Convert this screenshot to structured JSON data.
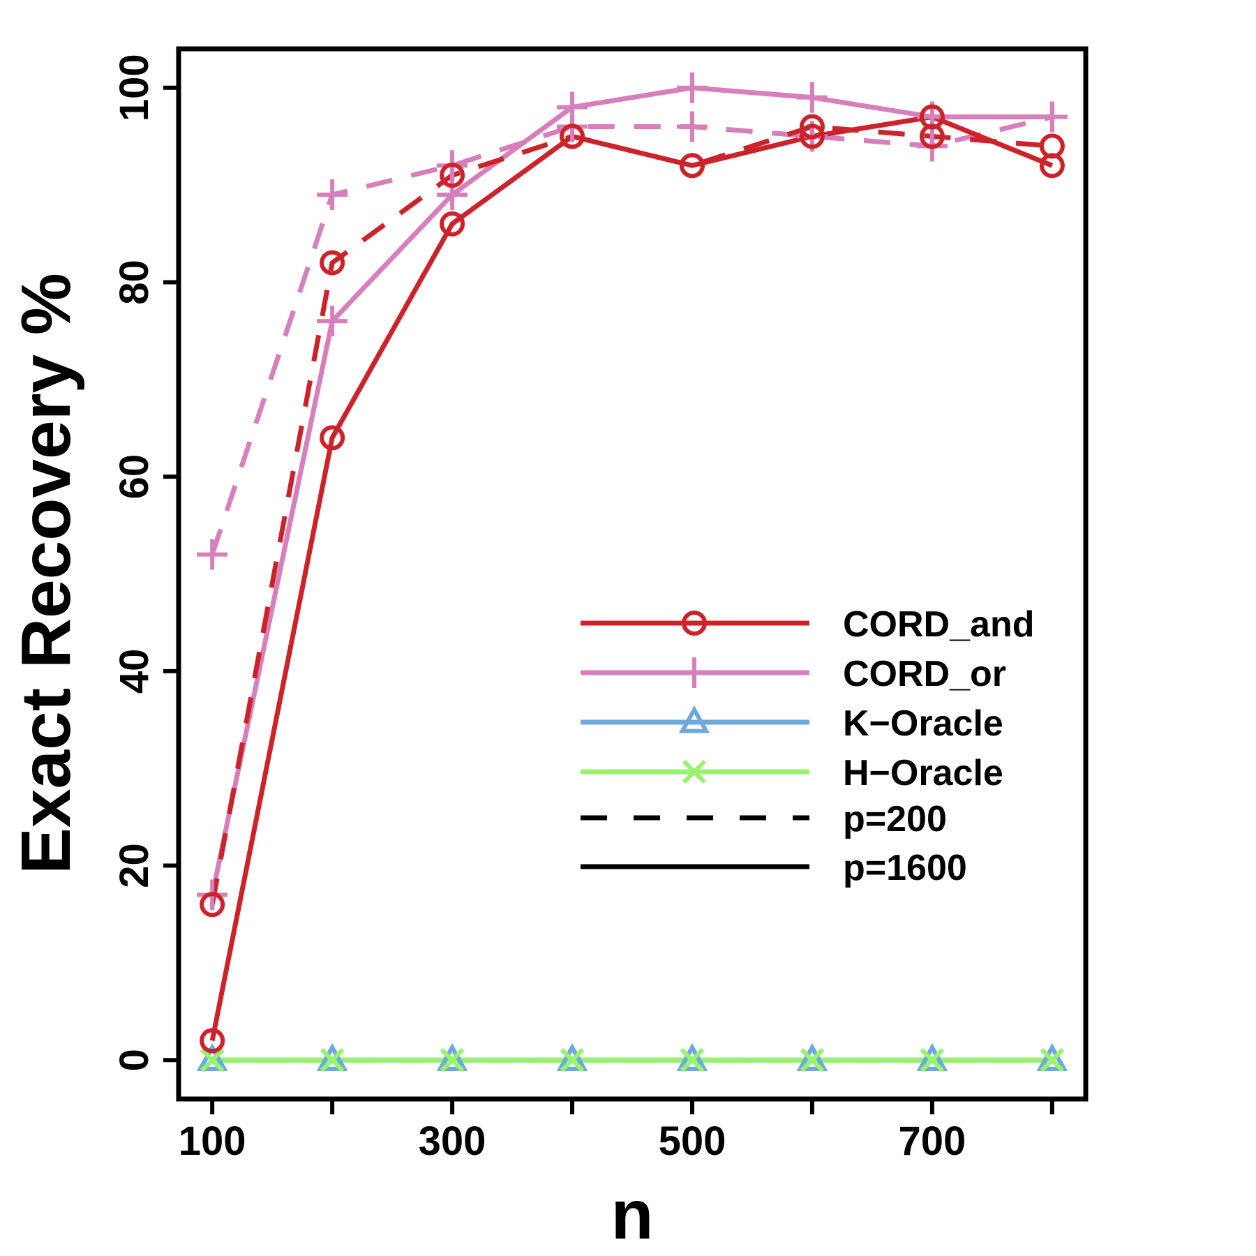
{
  "chart_data": {
    "type": "line",
    "title": "",
    "xlabel": "n",
    "ylabel": "Exact Recovery %",
    "x": [
      100,
      200,
      300,
      400,
      500,
      600,
      700,
      800
    ],
    "x_ticks": [
      100,
      300,
      500,
      700
    ],
    "y_ticks": [
      0,
      20,
      40,
      60,
      80,
      100
    ],
    "xlim": [
      72,
      828
    ],
    "ylim": [
      -4,
      104
    ],
    "grid": false,
    "legend_position": "center-right",
    "colors": {
      "CORD_and": "#cc2229",
      "CORD_or": "#d77fbb",
      "K-Oracle": "#6fa8dc",
      "H-Oracle": "#99f26e",
      "legend_line": "#000000"
    },
    "series": [
      {
        "method": "CORD_and",
        "p": "p=200",
        "dash": "dashed",
        "values": [
          16,
          82,
          91,
          95,
          92,
          96,
          95,
          94
        ]
      },
      {
        "method": "CORD_and",
        "p": "p=1600",
        "dash": "solid",
        "values": [
          2,
          64,
          86,
          95,
          92,
          95,
          97,
          92
        ]
      },
      {
        "method": "CORD_or",
        "p": "p=200",
        "dash": "dashed",
        "values": [
          52,
          89,
          92,
          96,
          96,
          95,
          94,
          97
        ]
      },
      {
        "method": "CORD_or",
        "p": "p=1600",
        "dash": "solid",
        "values": [
          17,
          76,
          89,
          98,
          100,
          99,
          97,
          97
        ]
      },
      {
        "method": "K-Oracle",
        "p": "p=200",
        "dash": "dashed",
        "values": [
          0,
          0,
          0,
          0,
          0,
          0,
          0,
          0
        ]
      },
      {
        "method": "K-Oracle",
        "p": "p=1600",
        "dash": "solid",
        "values": [
          0,
          0,
          0,
          0,
          0,
          0,
          0,
          0
        ]
      },
      {
        "method": "H-Oracle",
        "p": "p=200",
        "dash": "dashed",
        "values": [
          0,
          0,
          0,
          0,
          0,
          0,
          0,
          0
        ]
      },
      {
        "method": "H-Oracle",
        "p": "p=1600",
        "dash": "solid",
        "values": [
          0,
          0,
          0,
          0,
          0,
          0,
          0,
          0
        ]
      }
    ],
    "legend": [
      {
        "label": "CORD_and",
        "marker": "circle",
        "line": "solid",
        "color_key": "CORD_and"
      },
      {
        "label": "CORD_or",
        "marker": "plus",
        "line": "solid",
        "color_key": "CORD_or"
      },
      {
        "label": "K−Oracle",
        "marker": "triangle",
        "line": "solid",
        "color_key": "K-Oracle"
      },
      {
        "label": "H−Oracle",
        "marker": "cross",
        "line": "solid",
        "color_key": "H-Oracle"
      },
      {
        "label": "p=200",
        "marker": "none",
        "line": "dashed",
        "color_key": "legend_line"
      },
      {
        "label": "p=1600",
        "marker": "none",
        "line": "solid",
        "color_key": "legend_line"
      }
    ]
  }
}
